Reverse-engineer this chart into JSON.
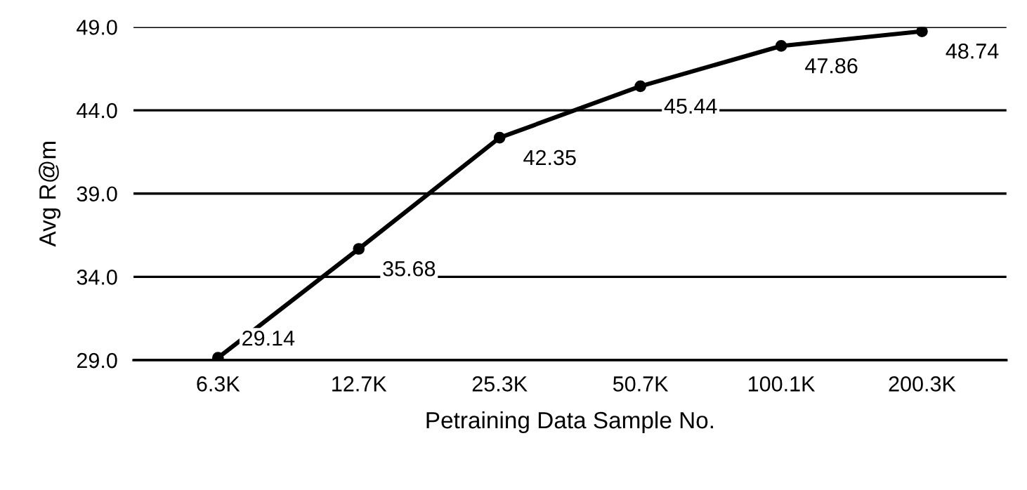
{
  "chart_data": {
    "type": "line",
    "xlabel": "Petraining Data Sample No.",
    "ylabel": "Avg R@m",
    "categories": [
      "6.3K",
      "12.7K",
      "25.3K",
      "50.7K",
      "100.1K",
      "200.3K"
    ],
    "series": [
      {
        "color": "#000000",
        "values": [
          29.14,
          35.68,
          42.35,
          45.44,
          47.86,
          48.74
        ]
      }
    ],
    "data_labels": true,
    "marker": "circle",
    "line_style": "solid",
    "ylim": [
      29,
      49
    ],
    "yticks": [
      {
        "value": 29,
        "label": "29.0"
      },
      {
        "value": 34,
        "label": "34.0"
      },
      {
        "value": 39,
        "label": "39.0"
      },
      {
        "value": 44,
        "label": "44.0"
      },
      {
        "value": 49,
        "label": "49.0"
      }
    ],
    "grid": "y",
    "legend": false
  }
}
